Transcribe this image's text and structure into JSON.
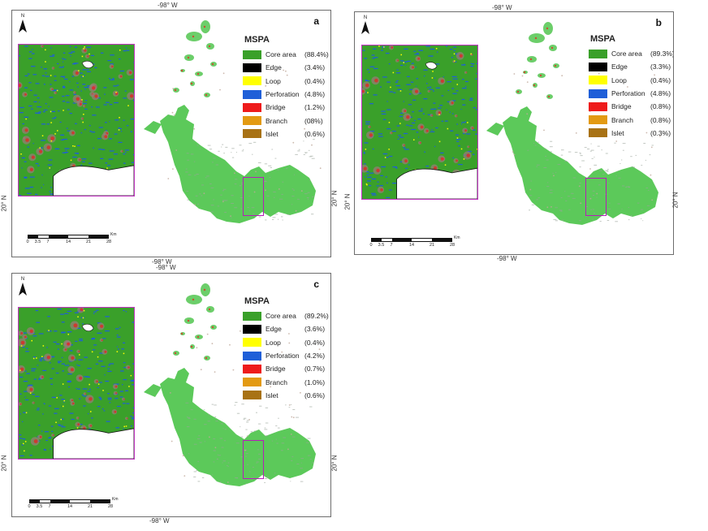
{
  "coords": {
    "lon": "-98° W",
    "lat": "20° N"
  },
  "north": "N",
  "legend_title": "MSPA",
  "scale": {
    "ticks": [
      "0",
      "3.5",
      "7",
      "14",
      "21",
      "28"
    ],
    "unit": "Km"
  },
  "classes": [
    {
      "name": "Core area",
      "color": "#3aa02a"
    },
    {
      "name": "Edge",
      "color": "#000000"
    },
    {
      "name": "Loop",
      "color": "#ffff00"
    },
    {
      "name": "Perforation",
      "color": "#1f5fd8"
    },
    {
      "name": "Bridge",
      "color": "#ee1b1b"
    },
    {
      "name": "Branch",
      "color": "#e39a12"
    },
    {
      "name": "Islet",
      "color": "#a87215"
    }
  ],
  "panels": [
    {
      "letter": "a",
      "percents": [
        "(88.4%)",
        "(3.4%)",
        "(0.4%)",
        "(4.8%)",
        "(1.2%)",
        "(08%)",
        "(0.6%)"
      ]
    },
    {
      "letter": "b",
      "percents": [
        "(89.3%)",
        "(3.3%)",
        "(0.4%)",
        "(4.8%)",
        "(0.8%)",
        "(0.8%)",
        "(0.3%)"
      ]
    },
    {
      "letter": "c",
      "percents": [
        "(89.2%)",
        "(3.6%)",
        "(0.4%)",
        "(4.2%)",
        "(0.7%)",
        "(1.0%)",
        "(0.6%)"
      ]
    }
  ]
}
